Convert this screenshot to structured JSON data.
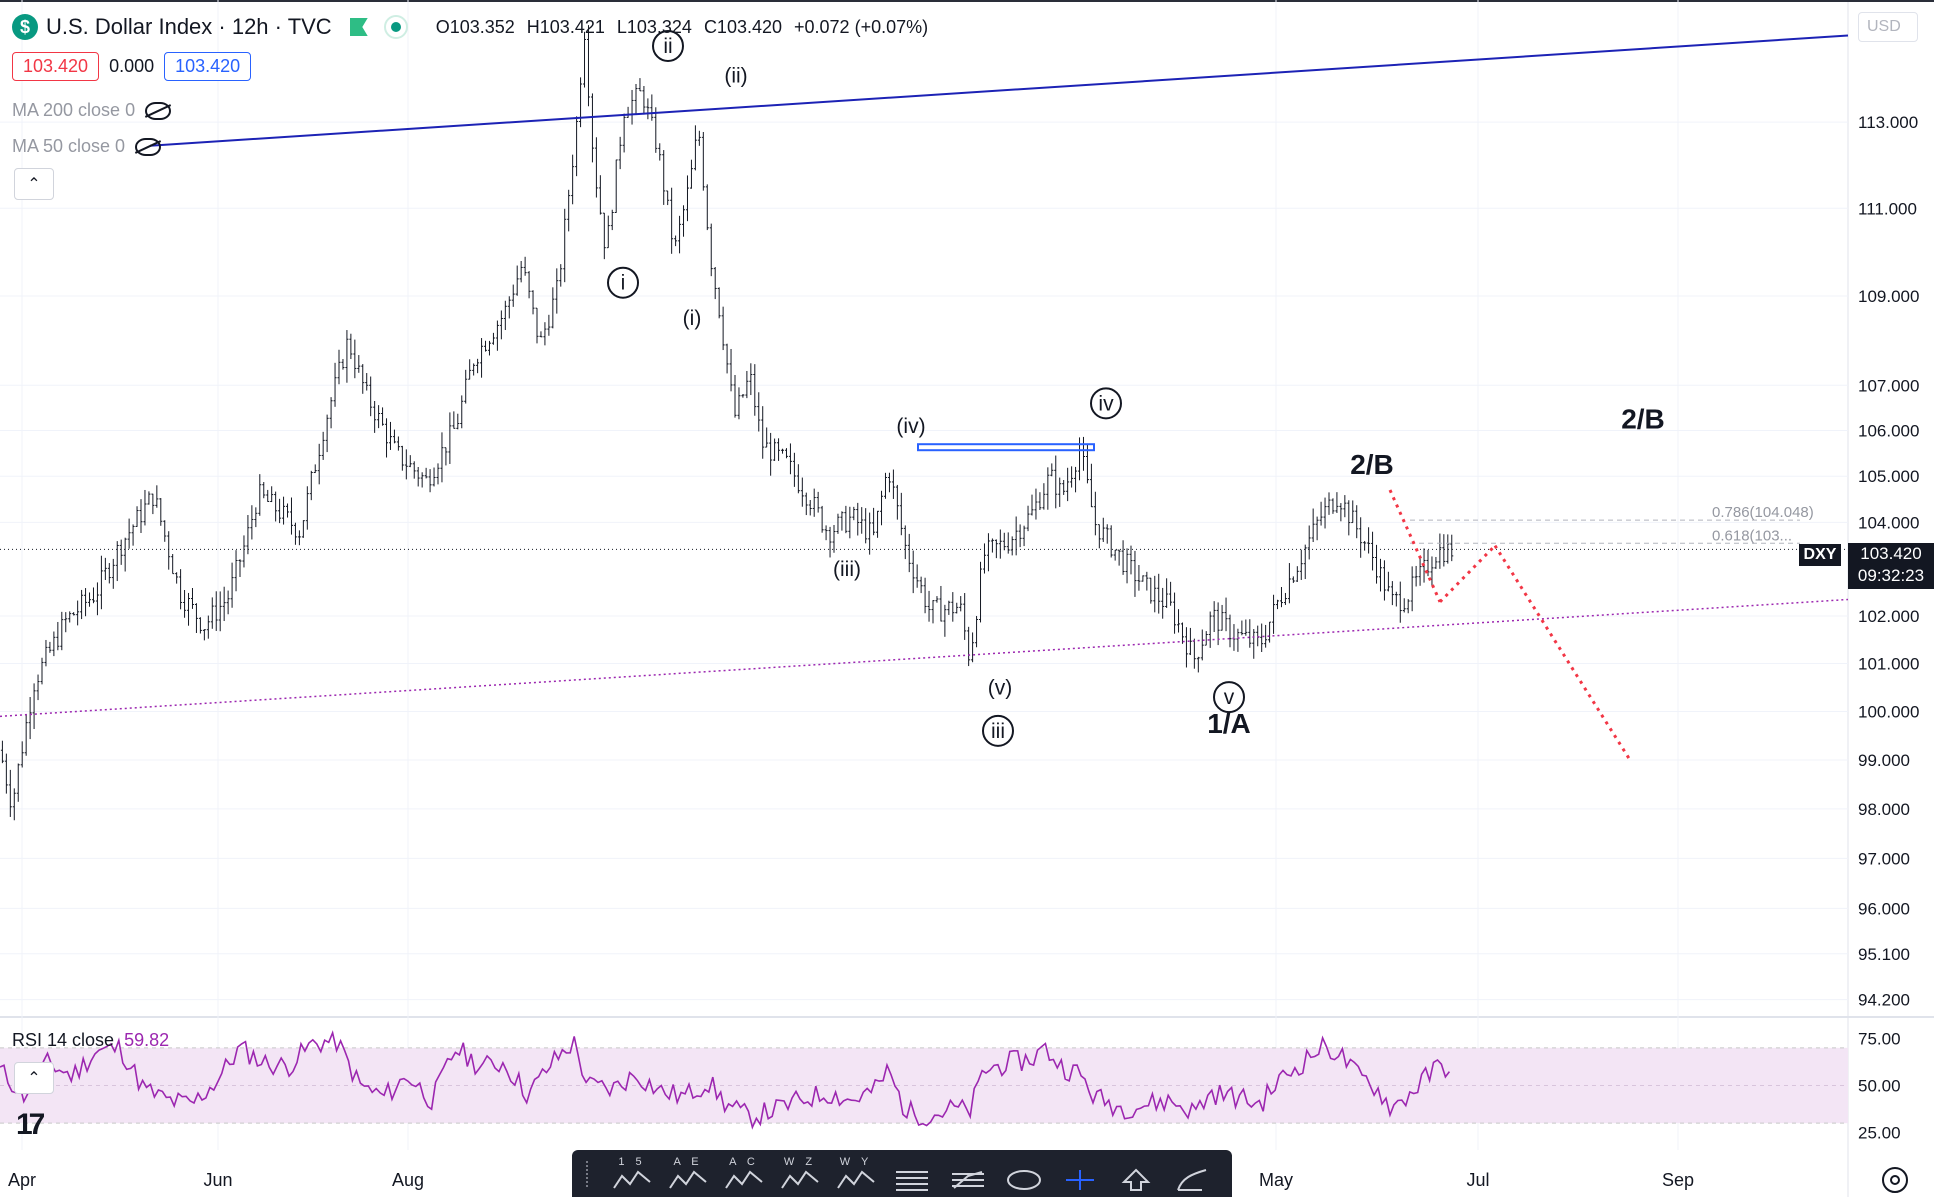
{
  "header": {
    "badge": "$",
    "title": "U.S. Dollar Index · 12h · TVC",
    "open": "O103.352",
    "high": "H103.421",
    "low": "L103.324",
    "close": "C103.420",
    "change": "+0.072 (+0.07%)"
  },
  "quote": {
    "bid": "103.420",
    "spread": "0.000",
    "ask": "103.420"
  },
  "indicators": {
    "ma200": "MA 200 close 0",
    "ma50": "MA 50 close 0"
  },
  "rsi": {
    "label": "RSI 14 close",
    "value": "59.82",
    "axis": [
      "75.00",
      "50.00",
      "25.00"
    ]
  },
  "currency": "USD",
  "symbol_tag": "DXY",
  "last_price": "103.420",
  "countdown": "09:32:23",
  "colors": {
    "up": "#089981",
    "down": "#f23645",
    "rsi": "#9c27b0",
    "trendline": "#1c22b5",
    "support": "#9c27b0",
    "projection": "#f23645"
  },
  "chart_data": {
    "type": "candlestick",
    "y_scale": "log",
    "ylim": [
      93.9,
      115.9
    ],
    "price_ticks": [
      "113.000",
      "111.000",
      "109.000",
      "107.000",
      "106.000",
      "105.000",
      "104.000",
      "102.000",
      "101.000",
      "100.000",
      "99.000",
      "98.000",
      "97.000",
      "96.000",
      "95.100",
      "94.200"
    ],
    "x_labels": [
      "Apr",
      "Jun",
      "Aug",
      "May",
      "Jul",
      "Sep"
    ],
    "fib_levels": [
      {
        "label": "0.786(104.048)",
        "value": 104.048
      },
      {
        "label": "0.618(103...",
        "value": 103.55
      }
    ],
    "wave_labels": [
      {
        "text": "ii",
        "circled": true,
        "price": 114.8
      },
      {
        "text": "(ii)",
        "circled": false,
        "price": 114.1
      },
      {
        "text": "i",
        "circled": true,
        "price": 109.3
      },
      {
        "text": "(i)",
        "circled": false,
        "price": 108.5
      },
      {
        "text": "(iv)",
        "circled": false,
        "price": 106.1
      },
      {
        "text": "iv",
        "circled": true,
        "price": 106.6
      },
      {
        "text": "(iii)",
        "circled": false,
        "price": 103.0
      },
      {
        "text": "(v)",
        "circled": false,
        "price": 100.5
      },
      {
        "text": "iii",
        "circled": true,
        "price": 99.6
      },
      {
        "text": "v",
        "circled": true,
        "price": 100.3
      },
      {
        "text": "1/A",
        "circled": false,
        "price": 99.7
      },
      {
        "text": "2/B",
        "circled": false,
        "price": 105.2
      },
      {
        "text": "2/B",
        "circled": false,
        "price": 106.2
      }
    ],
    "price_path": [
      [
        0,
        99.2
      ],
      [
        10,
        98.1
      ],
      [
        28,
        100.6
      ],
      [
        55,
        101.9
      ],
      [
        80,
        102.5
      ],
      [
        100,
        103.5
      ],
      [
        128,
        104.6
      ],
      [
        150,
        102.5
      ],
      [
        170,
        101.8
      ],
      [
        190,
        102.4
      ],
      [
        205,
        103.6
      ],
      [
        215,
        104.6
      ],
      [
        230,
        104.3
      ],
      [
        250,
        103.8
      ],
      [
        270,
        106.1
      ],
      [
        290,
        108.0
      ],
      [
        305,
        106.8
      ],
      [
        330,
        105.5
      ],
      [
        355,
        104.9
      ],
      [
        380,
        106.1
      ],
      [
        395,
        107.6
      ],
      [
        420,
        108.6
      ],
      [
        435,
        109.7
      ],
      [
        450,
        107.9
      ],
      [
        465,
        109.2
      ],
      [
        480,
        112.8
      ],
      [
        487,
        115.2
      ],
      [
        495,
        112.0
      ],
      [
        505,
        110.0
      ],
      [
        520,
        113.3
      ],
      [
        535,
        113.7
      ],
      [
        548,
        112.4
      ],
      [
        562,
        110.0
      ],
      [
        575,
        111.6
      ],
      [
        582,
        112.9
      ],
      [
        592,
        109.9
      ],
      [
        600,
        108.6
      ],
      [
        612,
        106.3
      ],
      [
        625,
        107.2
      ],
      [
        635,
        105.7
      ],
      [
        655,
        105.3
      ],
      [
        675,
        104.5
      ],
      [
        690,
        103.8
      ],
      [
        710,
        104.1
      ],
      [
        728,
        103.7
      ],
      [
        740,
        105.2
      ],
      [
        755,
        103.4
      ],
      [
        775,
        102.1
      ],
      [
        800,
        102.2
      ],
      [
        808,
        101.1
      ],
      [
        820,
        103.3
      ],
      [
        840,
        103.6
      ],
      [
        860,
        104.2
      ],
      [
        875,
        105.0
      ],
      [
        885,
        104.6
      ],
      [
        900,
        105.6
      ],
      [
        912,
        104.0
      ],
      [
        935,
        103.2
      ],
      [
        955,
        102.6
      ],
      [
        975,
        102.2
      ],
      [
        995,
        101.1
      ],
      [
        1010,
        102.0
      ],
      [
        1030,
        101.6
      ],
      [
        1050,
        101.4
      ],
      [
        1065,
        102.3
      ],
      [
        1085,
        103.3
      ],
      [
        1100,
        104.1
      ],
      [
        1115,
        104.6
      ],
      [
        1130,
        103.9
      ],
      [
        1145,
        103.2
      ],
      [
        1160,
        102.3
      ],
      [
        1172,
        102.4
      ],
      [
        1185,
        102.9
      ],
      [
        1198,
        103.4
      ],
      [
        1210,
        103.4
      ]
    ],
    "rsi_path": [
      [
        0,
        58
      ],
      [
        20,
        45
      ],
      [
        40,
        62
      ],
      [
        60,
        55
      ],
      [
        80,
        68
      ],
      [
        100,
        70
      ],
      [
        120,
        48
      ],
      [
        140,
        42
      ],
      [
        160,
        40
      ],
      [
        180,
        52
      ],
      [
        200,
        70
      ],
      [
        220,
        62
      ],
      [
        240,
        60
      ],
      [
        260,
        72
      ],
      [
        280,
        74
      ],
      [
        300,
        50
      ],
      [
        320,
        44
      ],
      [
        340,
        55
      ],
      [
        360,
        42
      ],
      [
        380,
        70
      ],
      [
        400,
        60
      ],
      [
        420,
        62
      ],
      [
        440,
        45
      ],
      [
        460,
        62
      ],
      [
        478,
        73
      ],
      [
        490,
        50
      ],
      [
        510,
        48
      ],
      [
        530,
        56
      ],
      [
        550,
        47
      ],
      [
        570,
        44
      ],
      [
        590,
        52
      ],
      [
        605,
        40
      ],
      [
        625,
        33
      ],
      [
        650,
        38
      ],
      [
        670,
        43
      ],
      [
        690,
        46
      ],
      [
        710,
        42
      ],
      [
        730,
        48
      ],
      [
        740,
        58
      ],
      [
        755,
        36
      ],
      [
        775,
        34
      ],
      [
        795,
        38
      ],
      [
        808,
        36
      ],
      [
        820,
        58
      ],
      [
        840,
        62
      ],
      [
        860,
        64
      ],
      [
        870,
        70
      ],
      [
        885,
        60
      ],
      [
        900,
        56
      ],
      [
        912,
        44
      ],
      [
        935,
        38
      ],
      [
        955,
        40
      ],
      [
        975,
        42
      ],
      [
        995,
        36
      ],
      [
        1010,
        46
      ],
      [
        1030,
        44
      ],
      [
        1050,
        40
      ],
      [
        1065,
        52
      ],
      [
        1085,
        62
      ],
      [
        1100,
        70
      ],
      [
        1115,
        68
      ],
      [
        1130,
        56
      ],
      [
        1145,
        50
      ],
      [
        1160,
        38
      ],
      [
        1172,
        44
      ],
      [
        1185,
        52
      ],
      [
        1198,
        60
      ],
      [
        1210,
        60
      ]
    ]
  }
}
